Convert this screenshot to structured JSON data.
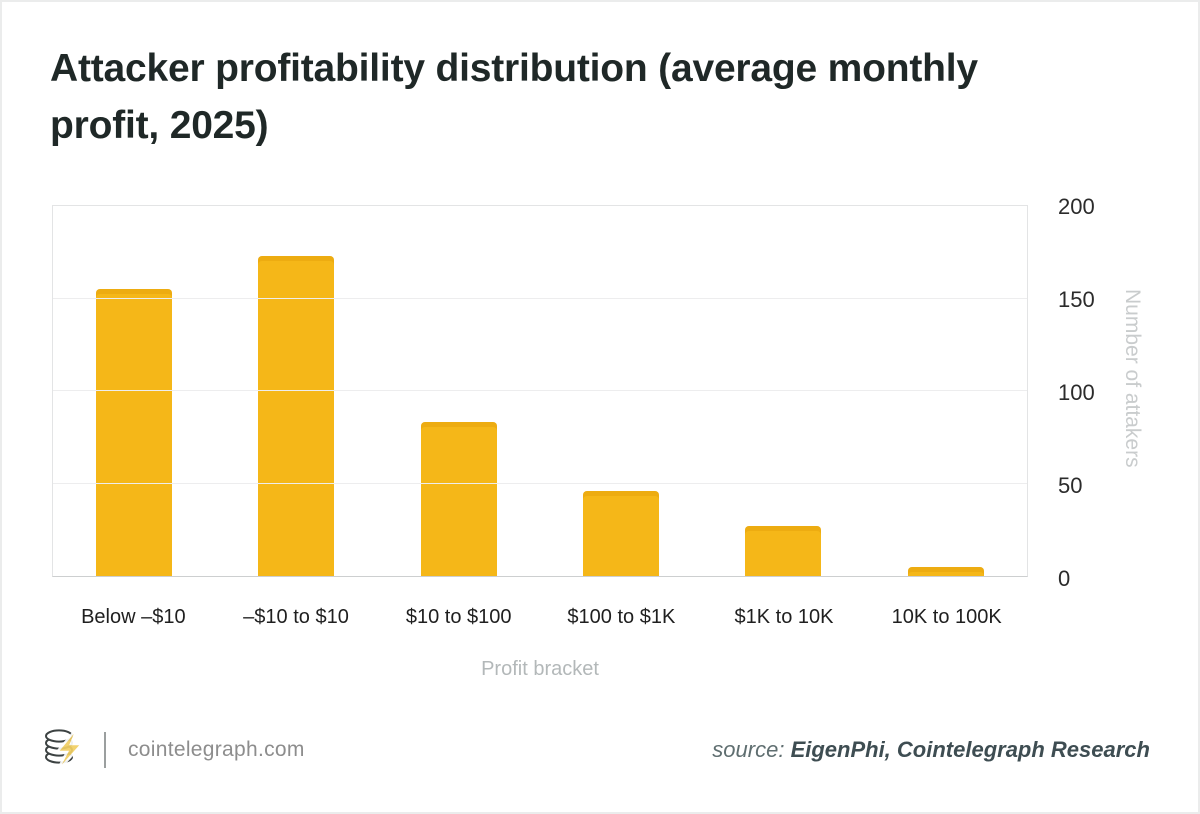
{
  "title_line1": "Attacker profitability distribution (average monthly",
  "title_line2": "profit, 2025)",
  "chart_data": {
    "type": "bar",
    "title": "Attacker profitability distribution (average monthly profit, 2025)",
    "categories": [
      "Below –$10",
      "–$10 to $10",
      "$10 to $100",
      "$100 to $1K",
      "$1K to 10K",
      "10K to 100K"
    ],
    "values": [
      155,
      173,
      83,
      46,
      27,
      5
    ],
    "xlabel": "Profit bracket",
    "ylabel": "Number of attakers",
    "ylim": [
      0,
      200
    ],
    "yticks": [
      0,
      50,
      100,
      150,
      200
    ],
    "bar_color": "#f5b718",
    "grid": "horizontal",
    "legend": "none",
    "ytick_side": "right"
  },
  "footer": {
    "site": "cointelegraph.com",
    "source_label": "source:",
    "source_value": "EigenPhi, Cointelegraph Research"
  }
}
